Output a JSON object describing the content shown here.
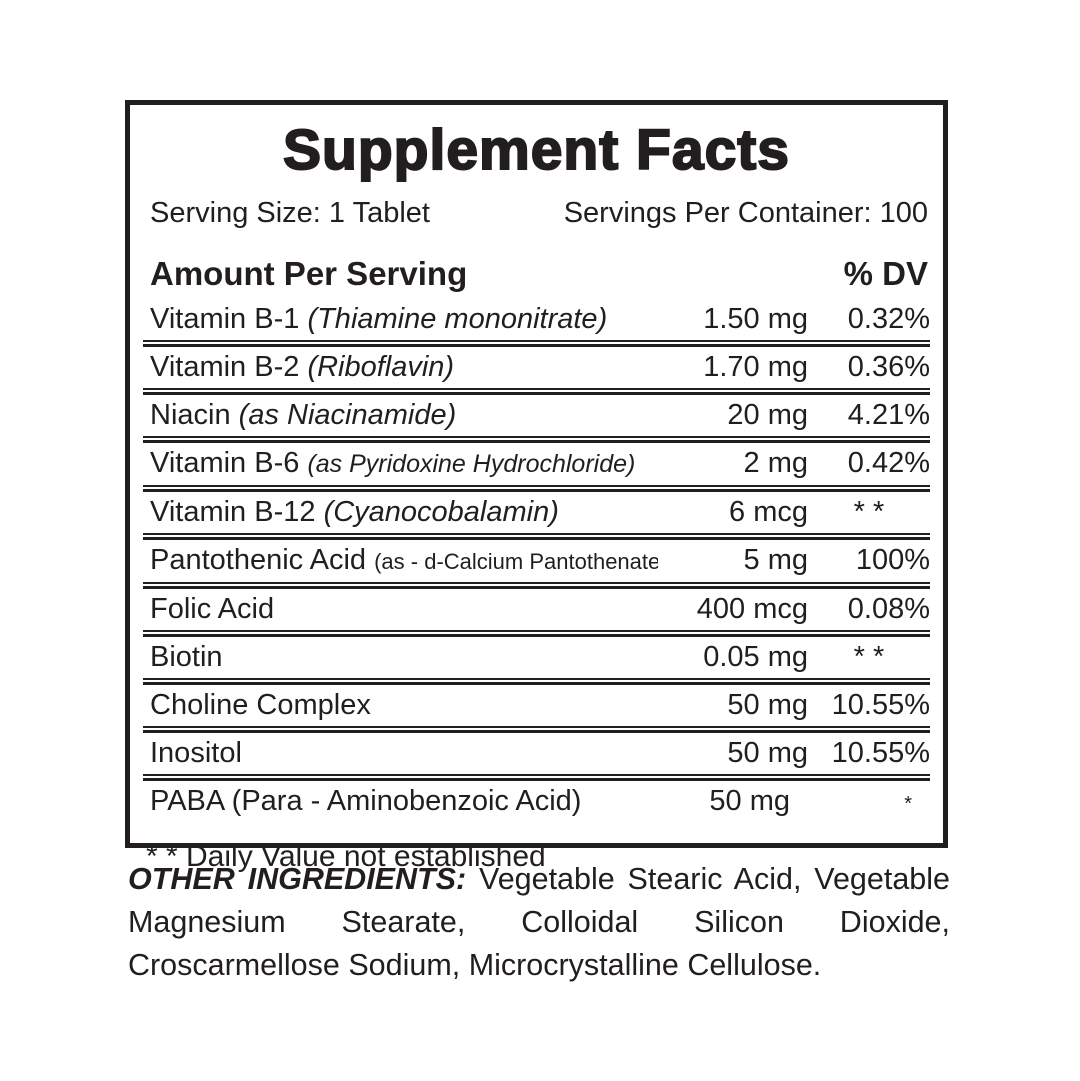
{
  "colors": {
    "ink": "#221e1f",
    "background": "#ffffff"
  },
  "label": {
    "title": "Supplement Facts",
    "serving_size": "Serving Size: 1 Tablet",
    "servings_per_container": "Servings Per Container: 100",
    "header": {
      "amount_label": "Amount Per Serving",
      "dv_label": "% DV"
    },
    "rows": [
      {
        "name": "Vitamin B-1",
        "note": "(Thiamine mononitrate)",
        "amount": "1.50 mg",
        "dv": "0.32%"
      },
      {
        "name": "Vitamin B-2",
        "note": "(Riboflavin)",
        "amount": "1.70 mg",
        "dv": "0.36%"
      },
      {
        "name": "Niacin",
        "note": "(as Niacinamide)",
        "amount": "20 mg",
        "dv": "4.21%"
      },
      {
        "name": "Vitamin B-6",
        "note": "(as Pyridoxine Hydrochloride)",
        "amount": "2 mg",
        "dv": "0.42%"
      },
      {
        "name": "Vitamin B-12",
        "note": "(Cyanocobalamin)",
        "amount": "6 mcg",
        "dv": "* *"
      },
      {
        "name": "Pantothenic Acid",
        "note": "(as - d-Calcium Pantothenate)",
        "amount": "5 mg",
        "dv": "100%"
      },
      {
        "name": "Folic Acid",
        "note": "",
        "amount": "400 mcg",
        "dv": "0.08%"
      },
      {
        "name": "Biotin",
        "note": "",
        "amount": "0.05 mg",
        "dv": "* *"
      },
      {
        "name": "Choline Complex",
        "note": "",
        "amount": "50 mg",
        "dv": "10.55%"
      },
      {
        "name": "Inositol",
        "note": "",
        "amount": "50 mg",
        "dv": "10.55%"
      },
      {
        "name": "PABA (Para - Aminobenzoic Acid)",
        "note": "",
        "amount": "50 mg",
        "dv": "*"
      }
    ],
    "footnote": "* * Daily Value not established"
  },
  "other_ingredients": {
    "heading": "OTHER INGREDIENTS:",
    "text": " Vegetable Stearic Acid, Vegetable Magnesium Stearate, Colloidal Silicon Dioxide, Croscarmellose Sodium, Microcrystalline Cellulose."
  }
}
